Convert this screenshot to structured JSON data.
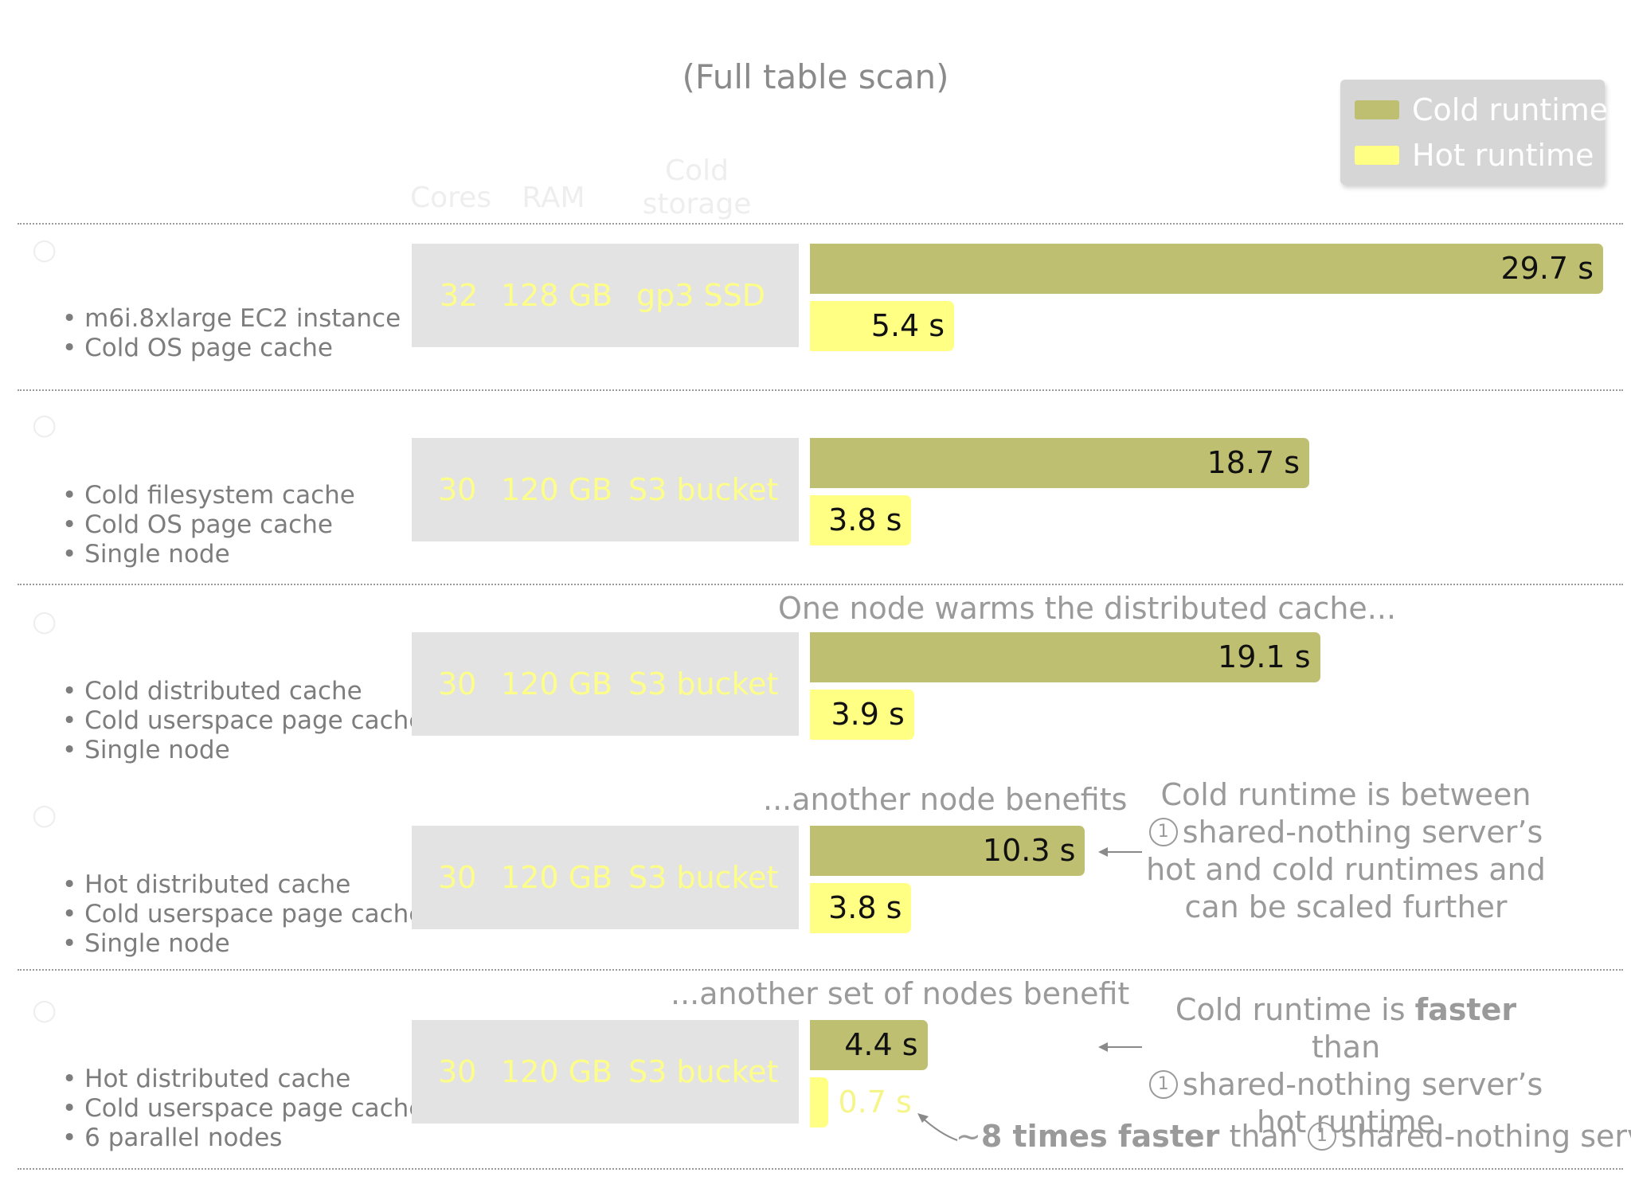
{
  "chart_data": {
    "type": "bar",
    "orientation": "horizontal",
    "title": "",
    "subtitle": "(Full table scan)",
    "xlabel": "",
    "ylabel": "",
    "unit": "s",
    "xlim": [
      0,
      29.7
    ],
    "grid": false,
    "legend_position": "top-right",
    "columns": {
      "cores": "Cores",
      "ram": "RAM",
      "storage_line1": "Cold",
      "storage_line2": "storage"
    },
    "series": [
      {
        "name": "Cold runtime",
        "color": "#bfbf72",
        "values": [
          29.7,
          18.7,
          19.1,
          10.3,
          4.4
        ],
        "labels": [
          "29.7 s",
          "18.7 s",
          "19.1 s",
          "10.3 s",
          "4.4 s"
        ]
      },
      {
        "name": "Hot runtime",
        "color": "#ffff84",
        "values": [
          5.4,
          3.8,
          3.9,
          3.8,
          0.7
        ],
        "labels": [
          "5.4 s",
          "3.8 s",
          "3.9 s",
          "3.8 s",
          "0.7 s"
        ]
      }
    ],
    "rows": [
      {
        "bullets": [
          "m6i.8xlarge EC2 instance",
          "Cold OS page cache"
        ],
        "cores": "32",
        "ram": "128 GB",
        "storage": "gp3 SSD"
      },
      {
        "bullets": [
          "Cold filesystem cache",
          "Cold OS page cache",
          "Single node"
        ],
        "cores": "30",
        "ram": "120 GB",
        "storage": "S3 bucket"
      },
      {
        "bullets": [
          "Cold distributed cache",
          "Cold userspace page cache",
          "Single node"
        ],
        "cores": "30",
        "ram": "120 GB",
        "storage": "S3 bucket",
        "annotation": "One node warms the distributed cache..."
      },
      {
        "bullets": [
          "Hot distributed cache",
          "Cold userspace page cache",
          "Single node"
        ],
        "cores": "30",
        "ram": "120 GB",
        "storage": "S3 bucket",
        "annotation": "...another node benefits"
      },
      {
        "bullets": [
          "Hot distributed cache",
          "Cold userspace page cache",
          "6 parallel nodes"
        ],
        "cores": "30",
        "ram": "120 GB",
        "storage": "S3 bucket",
        "annotation": "...another set of nodes benefit"
      }
    ],
    "notes": {
      "row4": {
        "line1": "Cold runtime is between",
        "line2": "shared-nothing server’s",
        "line3": "hot and cold runtimes and",
        "line4": "can be scaled further"
      },
      "row5": {
        "line1_a": "Cold runtime is ",
        "line1_b": "faster",
        "line1_c": " than",
        "line2": "shared-nothing server’s",
        "line3": "hot runtime"
      },
      "bottom": {
        "prefix": "~",
        "bold": "8 times faster",
        "mid": " than ",
        "suffix": "shared-nothing server"
      },
      "circled_number": "1"
    }
  }
}
